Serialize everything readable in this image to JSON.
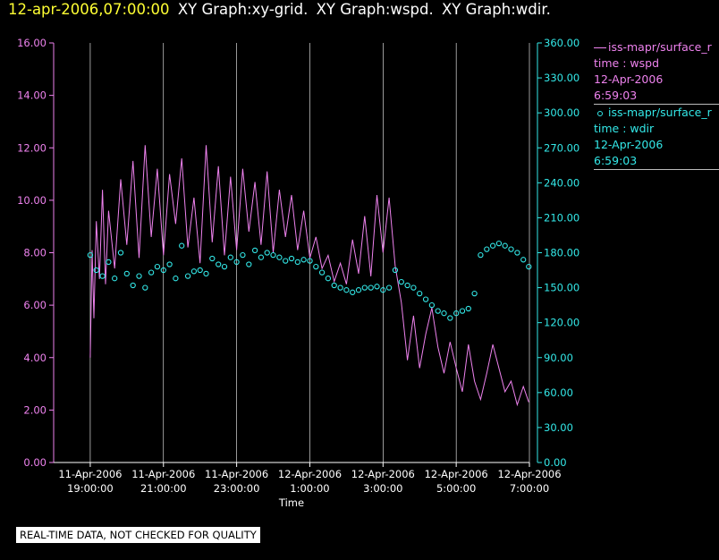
{
  "header": {
    "timestamp": "12-apr-2006,07:00:00",
    "titles": [
      "XY Graph:xy-grid.",
      "XY Graph:wspd.",
      "XY Graph:wdir."
    ]
  },
  "legend": [
    {
      "series": "iss-mapr/surface_r",
      "label": "time : wspd",
      "date": "12-Apr-2006",
      "time": "6:59:03",
      "color": "#ee82ee"
    },
    {
      "series": "iss-mapr/surface_r",
      "label": "time : wdir",
      "date": "12-Apr-2006",
      "time": "6:59:03",
      "color": "#33e8e8"
    }
  ],
  "disclaimer": "REAL-TIME DATA, NOT CHECKED FOR QUALITY",
  "chart_data": {
    "type": "line",
    "xlabel": "Time",
    "xlim": [
      "11-Apr-2006 18:00:00",
      "12-Apr-2006 07:00:00"
    ],
    "ylim_left": [
      0,
      16
    ],
    "ylim_right": [
      0,
      360
    ],
    "grid": "vertical",
    "x_ticks": [
      {
        "line1": "11-Apr-2006",
        "line2": "19:00:00",
        "x": "11-Apr-2006 19:00:00"
      },
      {
        "line1": "11-Apr-2006",
        "line2": "21:00:00",
        "x": "11-Apr-2006 21:00:00"
      },
      {
        "line1": "11-Apr-2006",
        "line2": "23:00:00",
        "x": "11-Apr-2006 23:00:00"
      },
      {
        "line1": "12-Apr-2006",
        "line2": "1:00:00",
        "x": "12-Apr-2006 01:00:00"
      },
      {
        "line1": "12-Apr-2006",
        "line2": "3:00:00",
        "x": "12-Apr-2006 03:00:00"
      },
      {
        "line1": "12-Apr-2006",
        "line2": "5:00:00",
        "x": "12-Apr-2006 05:00:00"
      },
      {
        "line1": "12-Apr-2006",
        "line2": "7:00:00",
        "x": "12-Apr-2006 07:00:00"
      }
    ],
    "y_ticks_left": [
      "0.00",
      "2.00",
      "4.00",
      "6.00",
      "8.00",
      "10.00",
      "12.00",
      "14.00",
      "16.00"
    ],
    "y_ticks_right": [
      "0.00",
      "30.00",
      "60.00",
      "90.00",
      "120.00",
      "150.00",
      "180.00",
      "210.00",
      "240.00",
      "270.00",
      "300.00",
      "330.00",
      "360.00"
    ],
    "series": [
      {
        "axis": "left",
        "color": "#ee82ee",
        "style": "line",
        "points": [
          [
            "11-Apr-2006 19:00:00",
            4.0
          ],
          [
            "11-Apr-2006 19:03:00",
            8.1
          ],
          [
            "11-Apr-2006 19:06:00",
            5.5
          ],
          [
            "11-Apr-2006 19:10:00",
            9.2
          ],
          [
            "11-Apr-2006 19:15:00",
            7.0
          ],
          [
            "11-Apr-2006 19:20:00",
            10.4
          ],
          [
            "11-Apr-2006 19:25:00",
            6.8
          ],
          [
            "11-Apr-2006 19:30:00",
            9.6
          ],
          [
            "11-Apr-2006 19:40:00",
            7.4
          ],
          [
            "11-Apr-2006 19:50:00",
            10.8
          ],
          [
            "11-Apr-2006 20:00:00",
            8.3
          ],
          [
            "11-Apr-2006 20:10:00",
            11.5
          ],
          [
            "11-Apr-2006 20:20:00",
            7.8
          ],
          [
            "11-Apr-2006 20:30:00",
            12.1
          ],
          [
            "11-Apr-2006 20:40:00",
            8.6
          ],
          [
            "11-Apr-2006 20:50:00",
            11.2
          ],
          [
            "11-Apr-2006 21:00:00",
            7.9
          ],
          [
            "11-Apr-2006 21:10:00",
            11.0
          ],
          [
            "11-Apr-2006 21:20:00",
            9.1
          ],
          [
            "11-Apr-2006 21:30:00",
            11.6
          ],
          [
            "11-Apr-2006 21:40:00",
            8.2
          ],
          [
            "11-Apr-2006 21:50:00",
            10.1
          ],
          [
            "11-Apr-2006 22:00:00",
            7.6
          ],
          [
            "11-Apr-2006 22:10:00",
            12.1
          ],
          [
            "11-Apr-2006 22:20:00",
            8.4
          ],
          [
            "11-Apr-2006 22:30:00",
            11.3
          ],
          [
            "11-Apr-2006 22:40:00",
            7.9
          ],
          [
            "11-Apr-2006 22:50:00",
            10.9
          ],
          [
            "11-Apr-2006 23:00:00",
            8.1
          ],
          [
            "11-Apr-2006 23:10:00",
            11.2
          ],
          [
            "11-Apr-2006 23:20:00",
            8.8
          ],
          [
            "11-Apr-2006 23:30:00",
            10.7
          ],
          [
            "11-Apr-2006 23:40:00",
            8.3
          ],
          [
            "11-Apr-2006 23:50:00",
            11.1
          ],
          [
            "12-Apr-2006 00:00:00",
            8.0
          ],
          [
            "12-Apr-2006 00:10:00",
            10.4
          ],
          [
            "12-Apr-2006 00:20:00",
            8.6
          ],
          [
            "12-Apr-2006 00:30:00",
            10.2
          ],
          [
            "12-Apr-2006 00:40:00",
            8.1
          ],
          [
            "12-Apr-2006 00:50:00",
            9.6
          ],
          [
            "12-Apr-2006 01:00:00",
            7.8
          ],
          [
            "12-Apr-2006 01:10:00",
            8.6
          ],
          [
            "12-Apr-2006 01:20:00",
            7.4
          ],
          [
            "12-Apr-2006 01:30:00",
            7.9
          ],
          [
            "12-Apr-2006 01:40:00",
            6.9
          ],
          [
            "12-Apr-2006 01:50:00",
            7.6
          ],
          [
            "12-Apr-2006 02:00:00",
            6.8
          ],
          [
            "12-Apr-2006 02:10:00",
            8.5
          ],
          [
            "12-Apr-2006 02:20:00",
            7.2
          ],
          [
            "12-Apr-2006 02:30:00",
            9.4
          ],
          [
            "12-Apr-2006 02:40:00",
            7.1
          ],
          [
            "12-Apr-2006 02:50:00",
            10.2
          ],
          [
            "12-Apr-2006 03:00:00",
            8.0
          ],
          [
            "12-Apr-2006 03:10:00",
            10.1
          ],
          [
            "12-Apr-2006 03:20:00",
            7.5
          ],
          [
            "12-Apr-2006 03:30:00",
            6.1
          ],
          [
            "12-Apr-2006 03:40:00",
            3.9
          ],
          [
            "12-Apr-2006 03:50:00",
            5.6
          ],
          [
            "12-Apr-2006 04:00:00",
            3.6
          ],
          [
            "12-Apr-2006 04:10:00",
            4.9
          ],
          [
            "12-Apr-2006 04:20:00",
            5.9
          ],
          [
            "12-Apr-2006 04:30:00",
            4.4
          ],
          [
            "12-Apr-2006 04:40:00",
            3.4
          ],
          [
            "12-Apr-2006 04:50:00",
            4.6
          ],
          [
            "12-Apr-2006 05:00:00",
            3.6
          ],
          [
            "12-Apr-2006 05:10:00",
            2.7
          ],
          [
            "12-Apr-2006 05:20:00",
            4.5
          ],
          [
            "12-Apr-2006 05:30:00",
            3.1
          ],
          [
            "12-Apr-2006 05:40:00",
            2.4
          ],
          [
            "12-Apr-2006 05:50:00",
            3.4
          ],
          [
            "12-Apr-2006 06:00:00",
            4.5
          ],
          [
            "12-Apr-2006 06:10:00",
            3.6
          ],
          [
            "12-Apr-2006 06:20:00",
            2.7
          ],
          [
            "12-Apr-2006 06:30:00",
            3.1
          ],
          [
            "12-Apr-2006 06:40:00",
            2.2
          ],
          [
            "12-Apr-2006 06:50:00",
            2.9
          ],
          [
            "12-Apr-2006 06:59:00",
            2.3
          ]
        ]
      },
      {
        "axis": "right",
        "color": "#33e8e8",
        "style": "markers",
        "points": [
          [
            "11-Apr-2006 19:00:00",
            178
          ],
          [
            "11-Apr-2006 19:10:00",
            165
          ],
          [
            "11-Apr-2006 19:20:00",
            160
          ],
          [
            "11-Apr-2006 19:30:00",
            172
          ],
          [
            "11-Apr-2006 19:40:00",
            158
          ],
          [
            "11-Apr-2006 19:50:00",
            180
          ],
          [
            "11-Apr-2006 20:00:00",
            162
          ],
          [
            "11-Apr-2006 20:10:00",
            152
          ],
          [
            "11-Apr-2006 20:20:00",
            160
          ],
          [
            "11-Apr-2006 20:30:00",
            150
          ],
          [
            "11-Apr-2006 20:40:00",
            163
          ],
          [
            "11-Apr-2006 20:50:00",
            168
          ],
          [
            "11-Apr-2006 21:00:00",
            165
          ],
          [
            "11-Apr-2006 21:10:00",
            170
          ],
          [
            "11-Apr-2006 21:20:00",
            158
          ],
          [
            "11-Apr-2006 21:30:00",
            186
          ],
          [
            "11-Apr-2006 21:40:00",
            160
          ],
          [
            "11-Apr-2006 21:50:00",
            164
          ],
          [
            "11-Apr-2006 22:00:00",
            165
          ],
          [
            "11-Apr-2006 22:10:00",
            162
          ],
          [
            "11-Apr-2006 22:20:00",
            175
          ],
          [
            "11-Apr-2006 22:30:00",
            170
          ],
          [
            "11-Apr-2006 22:40:00",
            168
          ],
          [
            "11-Apr-2006 22:50:00",
            176
          ],
          [
            "11-Apr-2006 23:00:00",
            172
          ],
          [
            "11-Apr-2006 23:10:00",
            178
          ],
          [
            "11-Apr-2006 23:20:00",
            170
          ],
          [
            "11-Apr-2006 23:30:00",
            182
          ],
          [
            "11-Apr-2006 23:40:00",
            176
          ],
          [
            "11-Apr-2006 23:50:00",
            180
          ],
          [
            "12-Apr-2006 00:00:00",
            178
          ],
          [
            "12-Apr-2006 00:10:00",
            176
          ],
          [
            "12-Apr-2006 00:20:00",
            173
          ],
          [
            "12-Apr-2006 00:30:00",
            175
          ],
          [
            "12-Apr-2006 00:40:00",
            172
          ],
          [
            "12-Apr-2006 00:50:00",
            174
          ],
          [
            "12-Apr-2006 01:00:00",
            173
          ],
          [
            "12-Apr-2006 01:10:00",
            168
          ],
          [
            "12-Apr-2006 01:20:00",
            163
          ],
          [
            "12-Apr-2006 01:30:00",
            158
          ],
          [
            "12-Apr-2006 01:40:00",
            152
          ],
          [
            "12-Apr-2006 01:50:00",
            150
          ],
          [
            "12-Apr-2006 02:00:00",
            148
          ],
          [
            "12-Apr-2006 02:10:00",
            146
          ],
          [
            "12-Apr-2006 02:20:00",
            148
          ],
          [
            "12-Apr-2006 02:30:00",
            150
          ],
          [
            "12-Apr-2006 02:40:00",
            150
          ],
          [
            "12-Apr-2006 02:50:00",
            151
          ],
          [
            "12-Apr-2006 03:00:00",
            148
          ],
          [
            "12-Apr-2006 03:10:00",
            150
          ],
          [
            "12-Apr-2006 03:20:00",
            165
          ],
          [
            "12-Apr-2006 03:30:00",
            155
          ],
          [
            "12-Apr-2006 03:40:00",
            152
          ],
          [
            "12-Apr-2006 03:50:00",
            150
          ],
          [
            "12-Apr-2006 04:00:00",
            145
          ],
          [
            "12-Apr-2006 04:10:00",
            140
          ],
          [
            "12-Apr-2006 04:20:00",
            135
          ],
          [
            "12-Apr-2006 04:30:00",
            130
          ],
          [
            "12-Apr-2006 04:40:00",
            128
          ],
          [
            "12-Apr-2006 04:50:00",
            124
          ],
          [
            "12-Apr-2006 05:00:00",
            128
          ],
          [
            "12-Apr-2006 05:10:00",
            130
          ],
          [
            "12-Apr-2006 05:20:00",
            132
          ],
          [
            "12-Apr-2006 05:30:00",
            145
          ],
          [
            "12-Apr-2006 05:40:00",
            178
          ],
          [
            "12-Apr-2006 05:50:00",
            183
          ],
          [
            "12-Apr-2006 06:00:00",
            186
          ],
          [
            "12-Apr-2006 06:10:00",
            188
          ],
          [
            "12-Apr-2006 06:20:00",
            186
          ],
          [
            "12-Apr-2006 06:30:00",
            183
          ],
          [
            "12-Apr-2006 06:40:00",
            180
          ],
          [
            "12-Apr-2006 06:50:00",
            174
          ],
          [
            "12-Apr-2006 06:59:00",
            168
          ]
        ]
      }
    ]
  }
}
